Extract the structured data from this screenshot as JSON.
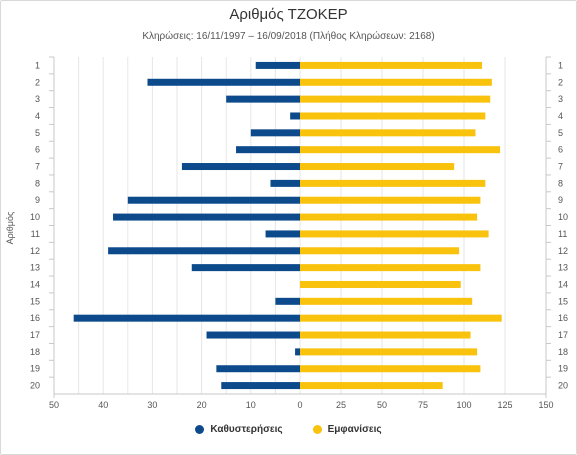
{
  "chart_data": {
    "type": "bar",
    "orientation": "horizontal",
    "title": "Αριθμός ΤΖΟΚΕΡ",
    "subtitle": "Κληρώσεις: 16/11/1997 – 16/09/2018 (Πλήθος Κληρώσεων: 2168)",
    "ylabel": "Αριθμός",
    "categories": [
      "1",
      "2",
      "3",
      "4",
      "5",
      "6",
      "7",
      "8",
      "9",
      "10",
      "11",
      "12",
      "13",
      "14",
      "15",
      "16",
      "17",
      "18",
      "19",
      "20"
    ],
    "left_axis": {
      "range": [
        50,
        0
      ],
      "ticks": [
        "50",
        "40",
        "30",
        "20",
        "10",
        "0"
      ]
    },
    "right_axis": {
      "range": [
        0,
        150
      ],
      "ticks": [
        "25",
        "50",
        "75",
        "100",
        "125",
        "150"
      ]
    },
    "series": [
      {
        "name": "Καθυστερήσεις",
        "side": "left",
        "color": "#0d4a8c",
        "values": [
          9,
          31,
          15,
          2,
          10,
          13,
          24,
          6,
          35,
          38,
          7,
          39,
          22,
          0,
          5,
          46,
          19,
          1,
          17,
          16
        ]
      },
      {
        "name": "Εμφανίσεις",
        "side": "right",
        "color": "#f8c20d",
        "values": [
          111,
          117,
          116,
          113,
          107,
          122,
          94,
          113,
          110,
          108,
          115,
          97,
          110,
          98,
          105,
          123,
          104,
          108,
          110,
          87
        ]
      }
    ],
    "grid": true,
    "legend_position": "bottom"
  }
}
